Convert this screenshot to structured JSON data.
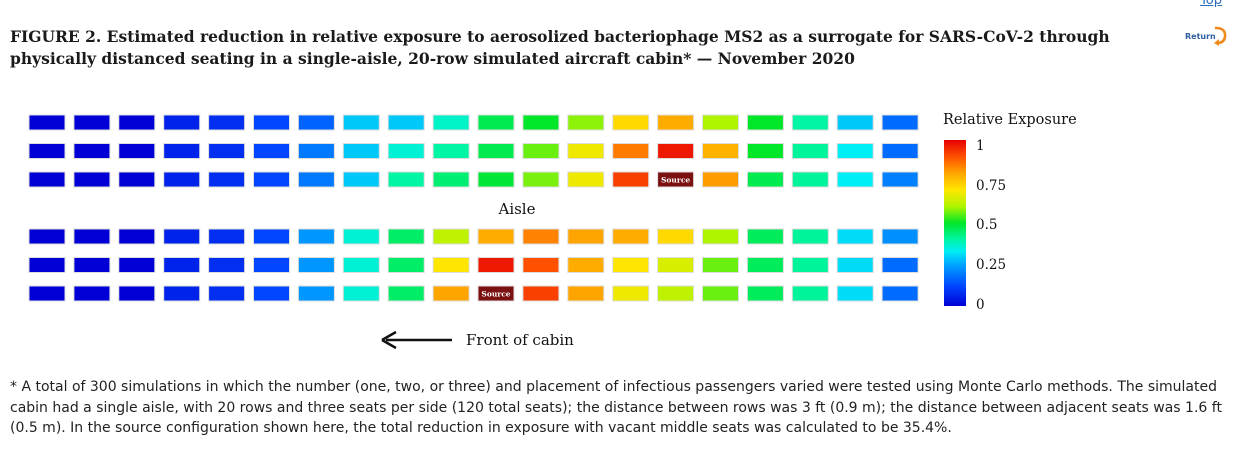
{
  "nav": {
    "top_label": "Top",
    "return_label": "Return"
  },
  "figure": {
    "title": "FIGURE 2. Estimated reduction in relative exposure to aerosolized bacteriophage MS2 as a surrogate for SARS-CoV-2 through physically distanced seating in a single-aisle, 20-row simulated aircraft cabin* — November 2020",
    "footnote": "* A total of 300 simulations in which the number (one, two, or three) and placement of infectious passengers varied were tested using Monte Carlo methods. The simulated cabin had a single aisle, with 20 rows and three seats per side (120 total seats); the distance between rows was 3 ft (0.9 m); the distance between adjacent seats was 1.6 ft (0.5 m). In the source configuration shown here, the total reduction in exposure with vacant middle seats was calculated to be 35.4%."
  },
  "chart_data": {
    "type": "heatmap",
    "columns": 20,
    "row_groups": [
      {
        "side": "upper",
        "rows": [
          [
            0.0,
            0.0,
            0.0,
            0.06,
            0.08,
            0.12,
            0.16,
            0.29,
            0.29,
            0.37,
            0.47,
            0.5,
            0.58,
            0.72,
            0.79,
            0.6,
            0.5,
            0.4,
            0.29,
            0.17
          ],
          [
            0.0,
            0.0,
            0.0,
            0.06,
            0.08,
            0.12,
            0.19,
            0.29,
            0.36,
            0.4,
            0.47,
            0.56,
            0.68,
            0.85,
            0.97,
            0.78,
            0.5,
            0.41,
            0.33,
            0.17
          ],
          [
            0.0,
            0.0,
            0.0,
            0.06,
            0.08,
            0.12,
            0.19,
            0.29,
            0.4,
            0.44,
            0.49,
            0.57,
            0.68,
            0.92,
            null,
            0.81,
            0.47,
            0.41,
            0.33,
            0.2
          ]
        ]
      },
      {
        "side": "lower",
        "rows": [
          [
            0.0,
            0.0,
            0.0,
            0.06,
            0.08,
            0.12,
            0.23,
            0.36,
            0.45,
            0.62,
            0.79,
            0.84,
            0.8,
            0.79,
            0.72,
            0.6,
            0.46,
            0.41,
            0.31,
            0.22
          ],
          [
            0.0,
            0.0,
            0.0,
            0.06,
            0.08,
            0.12,
            0.23,
            0.36,
            0.45,
            0.7,
            0.97,
            0.9,
            0.79,
            0.7,
            0.65,
            0.56,
            0.46,
            0.41,
            0.31,
            0.17
          ],
          [
            0.0,
            0.0,
            0.0,
            0.06,
            0.08,
            0.12,
            0.23,
            0.36,
            0.45,
            0.8,
            null,
            0.92,
            0.8,
            0.68,
            0.62,
            0.56,
            0.46,
            0.41,
            0.31,
            0.17
          ]
        ]
      }
    ],
    "source_label": "Source",
    "aisle_label": "Aisle",
    "direction_label": "Front of cabin",
    "direction_arrow": "left",
    "colorbar": {
      "title": "Relative Exposure",
      "range": [
        0,
        1
      ],
      "ticks": [
        {
          "value": 1,
          "label": "1"
        },
        {
          "value": 0.75,
          "label": "0.75"
        },
        {
          "value": 0.5,
          "label": "0.5"
        },
        {
          "value": 0.25,
          "label": "0.25"
        },
        {
          "value": 0,
          "label": "0"
        }
      ],
      "colormap": "jet"
    },
    "colors": {
      "source_cell": "#7a1010",
      "seat_border": "#dddddd"
    }
  }
}
